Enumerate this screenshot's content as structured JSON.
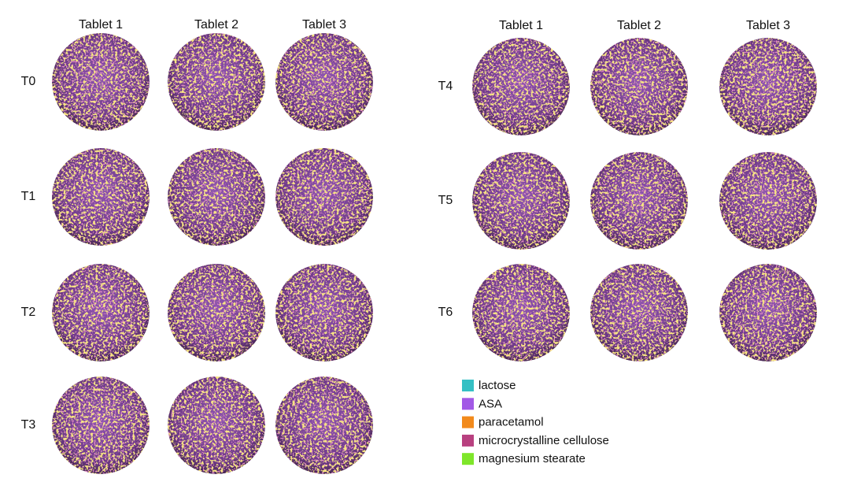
{
  "panels": [
    {
      "columns": [
        "Tablet 1",
        "Tablet 2",
        "Tablet 3"
      ],
      "rows": [
        "T0",
        "T1",
        "T2",
        "T3"
      ]
    },
    {
      "columns": [
        "Tablet 1",
        "Tablet 2",
        "Tablet 3"
      ],
      "rows": [
        "T4",
        "T5",
        "T6"
      ]
    }
  ],
  "legend": [
    {
      "label": "lactose",
      "color": "#35c0c4"
    },
    {
      "label": "ASA",
      "color": "#a259e6"
    },
    {
      "label": "paracetamol",
      "color": "#f28a1c"
    },
    {
      "label": "microcrystalline cellulose",
      "color": "#b8407f"
    },
    {
      "label": "magnesium stearate",
      "color": "#7ee62a"
    }
  ]
}
